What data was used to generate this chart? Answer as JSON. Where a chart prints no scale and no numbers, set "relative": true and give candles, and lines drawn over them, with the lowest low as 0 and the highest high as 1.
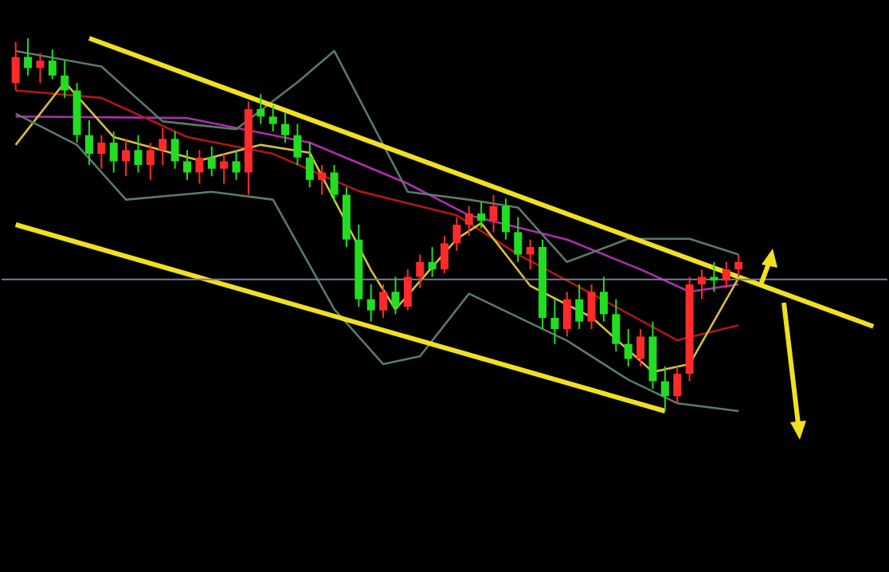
{
  "chart_data": {
    "type": "candlestick",
    "relative": true,
    "categories": [
      null,
      null,
      null,
      null,
      null,
      null,
      null,
      null,
      null,
      null,
      null,
      null,
      null,
      null,
      null,
      null,
      null,
      null,
      null,
      null,
      null,
      null,
      null,
      null,
      null,
      null,
      null,
      null,
      null,
      null,
      null,
      null,
      null,
      null,
      null,
      null,
      null,
      null,
      null,
      null,
      null,
      null,
      null,
      null,
      null,
      null,
      null,
      null,
      null,
      null,
      null,
      null,
      null,
      null,
      null,
      null,
      null,
      null,
      null,
      null,
      null,
      null,
      null,
      null,
      null,
      null,
      null,
      null,
      null,
      null,
      null
    ],
    "ohlc": [
      [
        0.88,
        0.99,
        0.86,
        0.95
      ],
      [
        0.95,
        1.0,
        0.9,
        0.92
      ],
      [
        0.92,
        0.96,
        0.88,
        0.94
      ],
      [
        0.94,
        0.97,
        0.89,
        0.9
      ],
      [
        0.9,
        0.94,
        0.84,
        0.86
      ],
      [
        0.86,
        0.88,
        0.72,
        0.74
      ],
      [
        0.74,
        0.78,
        0.66,
        0.69
      ],
      [
        0.69,
        0.74,
        0.65,
        0.72
      ],
      [
        0.72,
        0.75,
        0.64,
        0.67
      ],
      [
        0.67,
        0.73,
        0.63,
        0.7
      ],
      [
        0.7,
        0.74,
        0.64,
        0.66
      ],
      [
        0.66,
        0.72,
        0.62,
        0.7
      ],
      [
        0.7,
        0.76,
        0.66,
        0.73
      ],
      [
        0.73,
        0.75,
        0.65,
        0.67
      ],
      [
        0.67,
        0.7,
        0.62,
        0.64
      ],
      [
        0.64,
        0.7,
        0.61,
        0.68
      ],
      [
        0.68,
        0.71,
        0.63,
        0.65
      ],
      [
        0.65,
        0.69,
        0.61,
        0.67
      ],
      [
        0.67,
        0.7,
        0.62,
        0.64
      ],
      [
        0.64,
        0.83,
        0.58,
        0.81
      ],
      [
        0.81,
        0.85,
        0.77,
        0.79
      ],
      [
        0.79,
        0.82,
        0.75,
        0.77
      ],
      [
        0.77,
        0.8,
        0.72,
        0.74
      ],
      [
        0.74,
        0.77,
        0.66,
        0.68
      ],
      [
        0.68,
        0.72,
        0.6,
        0.62
      ],
      [
        0.62,
        0.66,
        0.58,
        0.64
      ],
      [
        0.64,
        0.66,
        0.56,
        0.58
      ],
      [
        0.58,
        0.6,
        0.44,
        0.46
      ],
      [
        0.46,
        0.5,
        0.28,
        0.3
      ],
      [
        0.3,
        0.34,
        0.24,
        0.27
      ],
      [
        0.27,
        0.34,
        0.25,
        0.32
      ],
      [
        0.32,
        0.36,
        0.26,
        0.28
      ],
      [
        0.28,
        0.38,
        0.27,
        0.36
      ],
      [
        0.36,
        0.42,
        0.33,
        0.4
      ],
      [
        0.4,
        0.44,
        0.36,
        0.38
      ],
      [
        0.38,
        0.47,
        0.37,
        0.45
      ],
      [
        0.45,
        0.52,
        0.43,
        0.5
      ],
      [
        0.5,
        0.55,
        0.47,
        0.53
      ],
      [
        0.53,
        0.56,
        0.49,
        0.51
      ],
      [
        0.51,
        0.58,
        0.48,
        0.55
      ],
      [
        0.55,
        0.57,
        0.46,
        0.48
      ],
      [
        0.48,
        0.52,
        0.4,
        0.42
      ],
      [
        0.42,
        0.46,
        0.38,
        0.44
      ],
      [
        0.44,
        0.46,
        0.22,
        0.25
      ],
      [
        0.25,
        0.3,
        0.18,
        0.22
      ],
      [
        0.22,
        0.32,
        0.2,
        0.3
      ],
      [
        0.3,
        0.34,
        0.22,
        0.24
      ],
      [
        0.24,
        0.34,
        0.22,
        0.32
      ],
      [
        0.32,
        0.36,
        0.24,
        0.26
      ],
      [
        0.26,
        0.3,
        0.16,
        0.18
      ],
      [
        0.18,
        0.22,
        0.12,
        0.14
      ],
      [
        0.14,
        0.22,
        0.12,
        0.2
      ],
      [
        0.2,
        0.24,
        0.06,
        0.08
      ],
      [
        0.08,
        0.12,
        0.0,
        0.04
      ],
      [
        0.04,
        0.12,
        0.02,
        0.1
      ],
      [
        0.1,
        0.36,
        0.08,
        0.34
      ],
      [
        0.34,
        0.38,
        0.3,
        0.36
      ],
      [
        0.36,
        0.4,
        0.32,
        0.35
      ],
      [
        0.35,
        0.4,
        0.33,
        0.38
      ],
      [
        0.38,
        0.42,
        0.36,
        0.4
      ],
      null,
      null,
      null,
      null,
      null,
      null,
      null,
      null,
      null,
      null,
      null
    ],
    "colors": [
      "#ff2a2a",
      "#22dd22",
      "#ff2a2a",
      "#22dd22",
      "#22dd22",
      "#22dd22",
      "#22dd22",
      "#ff2a2a",
      "#22dd22",
      "#ff2a2a",
      "#22dd22",
      "#ff2a2a",
      "#ff2a2a",
      "#22dd22",
      "#22dd22",
      "#ff2a2a",
      "#22dd22",
      "#ff2a2a",
      "#22dd22",
      "#ff2a2a",
      "#22dd22",
      "#22dd22",
      "#22dd22",
      "#22dd22",
      "#22dd22",
      "#ff2a2a",
      "#22dd22",
      "#22dd22",
      "#22dd22",
      "#22dd22",
      "#ff2a2a",
      "#22dd22",
      "#ff2a2a",
      "#ff2a2a",
      "#22dd22",
      "#ff2a2a",
      "#ff2a2a",
      "#ff2a2a",
      "#22dd22",
      "#ff2a2a",
      "#22dd22",
      "#22dd22",
      "#ff2a2a",
      "#22dd22",
      "#22dd22",
      "#ff2a2a",
      "#22dd22",
      "#ff2a2a",
      "#22dd22",
      "#22dd22",
      "#22dd22",
      "#ff2a2a",
      "#22dd22",
      "#22dd22",
      "#ff2a2a",
      "#ff2a2a",
      "#ff2a2a",
      "#22dd22",
      "#ff2a2a",
      "#ff2a2a",
      null,
      null,
      null,
      null,
      null,
      null,
      null,
      null,
      null,
      null,
      null
    ],
    "series": [
      {
        "type": "line",
        "color": "#b02cb0",
        "values": [
          0.79,
          null,
          null,
          null,
          null,
          null,
          null,
          null,
          null,
          null,
          null,
          null,
          null,
          null,
          0.786,
          null,
          null,
          null,
          null,
          null,
          null,
          null,
          null,
          null,
          0.72,
          null,
          null,
          null,
          null,
          null,
          null,
          null,
          0.61,
          null,
          null,
          null,
          null,
          0.525,
          null,
          null,
          null,
          null,
          null,
          null,
          null,
          0.46,
          null,
          null,
          null,
          null,
          null,
          0.38,
          null,
          null,
          null,
          0.32,
          null,
          null,
          null,
          0.34,
          null,
          null,
          null,
          null,
          null,
          null,
          null,
          null,
          null,
          null,
          null
        ]
      },
      {
        "type": "line",
        "color": "#b01818",
        "values": [
          0.86,
          null,
          null,
          null,
          null,
          null,
          null,
          0.84,
          null,
          null,
          null,
          null,
          null,
          null,
          0.735,
          null,
          null,
          null,
          null,
          null,
          null,
          0.69,
          null,
          null,
          null,
          null,
          null,
          null,
          0.59,
          null,
          null,
          null,
          null,
          null,
          null,
          null,
          0.525,
          null,
          null,
          null,
          null,
          0.42,
          null,
          null,
          null,
          null,
          null,
          0.315,
          null,
          null,
          null,
          null,
          null,
          null,
          0.19,
          null,
          null,
          null,
          null,
          0.23,
          null,
          null,
          null,
          null,
          null,
          null,
          null,
          null,
          null,
          null,
          null
        ]
      },
      {
        "type": "line",
        "color": "#d4c040",
        "values": [
          0.714,
          null,
          null,
          null,
          0.882,
          null,
          null,
          null,
          0.735,
          null,
          null,
          null,
          null,
          null,
          null,
          0.672,
          null,
          null,
          null,
          null,
          0.714,
          null,
          null,
          null,
          0.693,
          null,
          null,
          null,
          null,
          0.378,
          null,
          0.273,
          null,
          null,
          null,
          null,
          0.462,
          null,
          0.504,
          null,
          null,
          null,
          0.336,
          null,
          null,
          null,
          null,
          0.252,
          null,
          null,
          null,
          null,
          0.105,
          null,
          null,
          0.126,
          null,
          null,
          null,
          0.357,
          null,
          null,
          null,
          null,
          null,
          null,
          null,
          null,
          null,
          null,
          null
        ]
      },
      {
        "type": "line",
        "color": "#5a7a6a",
        "values": [
          0.966,
          null,
          null,
          null,
          null,
          null,
          null,
          0.924,
          null,
          null,
          null,
          null,
          0.777,
          null,
          null,
          null,
          null,
          null,
          0.756,
          null,
          null,
          null,
          null,
          0.882,
          null,
          null,
          0.966,
          null,
          0.84,
          null,
          null,
          null,
          0.588,
          null,
          null,
          null,
          null,
          0.567,
          null,
          null,
          null,
          0.546,
          null,
          null,
          null,
          0.4,
          null,
          null,
          null,
          null,
          0.462,
          null,
          null,
          null,
          null,
          0.462,
          null,
          null,
          null,
          0.42,
          null,
          null,
          null,
          null,
          null,
          null,
          null,
          null,
          null,
          null,
          null
        ]
      },
      {
        "type": "line",
        "color": "#5a7a6a",
        "values": [
          0.798,
          null,
          null,
          null,
          null,
          0.714,
          null,
          null,
          null,
          0.567,
          null,
          null,
          null,
          null,
          null,
          null,
          0.588,
          null,
          null,
          null,
          null,
          0.567,
          null,
          null,
          null,
          null,
          0.273,
          null,
          null,
          null,
          0.126,
          null,
          null,
          0.147,
          null,
          null,
          null,
          0.315,
          null,
          null,
          null,
          0.252,
          null,
          null,
          null,
          0.189,
          null,
          null,
          null,
          null,
          0.084,
          null,
          null,
          null,
          0.021,
          null,
          null,
          null,
          null,
          0.0,
          null,
          null,
          null,
          null,
          null,
          null,
          null,
          null,
          null,
          null,
          null
        ]
      },
      {
        "type": "line",
        "color": "#f0e020",
        "values": [
          null,
          null,
          null,
          null,
          null,
          null,
          1.0,
          null,
          null,
          null,
          null,
          null,
          null,
          null,
          null,
          null,
          null,
          null,
          null,
          null,
          null,
          null,
          null,
          null,
          null,
          null,
          null,
          null,
          null,
          null,
          null,
          null,
          null,
          null,
          null,
          null,
          null,
          null,
          null,
          null,
          null,
          null,
          null,
          null,
          null,
          null,
          null,
          null,
          null,
          null,
          null,
          null,
          null,
          null,
          null,
          null,
          null,
          null,
          null,
          null,
          null,
          null,
          null,
          null,
          null,
          null,
          null,
          null,
          null,
          null,
          0.227
        ]
      },
      {
        "type": "line",
        "color": "#f0e020",
        "values": [
          0.5,
          null,
          null,
          null,
          null,
          null,
          null,
          null,
          null,
          null,
          null,
          null,
          null,
          null,
          null,
          null,
          null,
          null,
          null,
          null,
          null,
          null,
          null,
          null,
          null,
          null,
          null,
          null,
          null,
          null,
          null,
          null,
          null,
          null,
          null,
          null,
          null,
          null,
          null,
          null,
          null,
          null,
          null,
          null,
          null,
          null,
          null,
          null,
          null,
          null,
          null,
          null,
          null,
          0.0,
          null,
          null,
          null,
          null,
          null,
          null,
          null,
          null,
          null,
          null,
          null,
          null,
          null,
          null,
          null,
          null,
          null
        ]
      }
    ],
    "ref_lines": [
      {
        "axis": "y",
        "value": 0.353,
        "color": "#7a7a9a"
      }
    ]
  }
}
